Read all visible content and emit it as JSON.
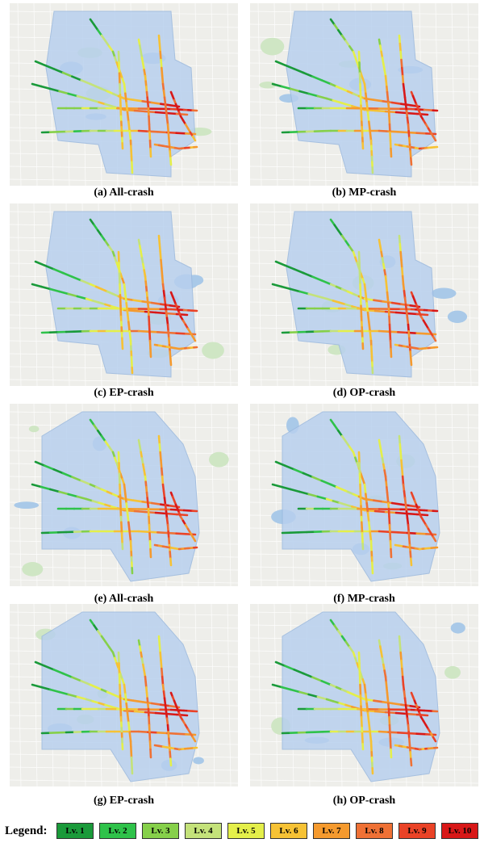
{
  "panels": [
    {
      "caption": "(a) All-crash",
      "zoom": "far"
    },
    {
      "caption": "(b) MP-crash",
      "zoom": "far"
    },
    {
      "caption": "(c) EP-crash",
      "zoom": "far"
    },
    {
      "caption": "(d) OP-crash",
      "zoom": "far"
    },
    {
      "caption": "(e) All-crash",
      "zoom": "near"
    },
    {
      "caption": "(f) MP-crash",
      "zoom": "near"
    },
    {
      "caption": "(g) EP-crash",
      "zoom": "near"
    },
    {
      "caption": "(h) OP-crash",
      "zoom": "near"
    }
  ],
  "legend": {
    "label": "Legend:",
    "items": [
      {
        "label": "Lv. 1",
        "color": "#1a9a3a"
      },
      {
        "label": "Lv. 2",
        "color": "#2fc24a"
      },
      {
        "label": "Lv. 3",
        "color": "#86d04a"
      },
      {
        "label": "Lv. 4",
        "color": "#c4e27a"
      },
      {
        "label": "Lv. 5",
        "color": "#e4ef4a"
      },
      {
        "label": "Lv. 6",
        "color": "#f6c235"
      },
      {
        "label": "Lv. 7",
        "color": "#f59a2e"
      },
      {
        "label": "Lv. 8",
        "color": "#ef7135"
      },
      {
        "label": "Lv. 9",
        "color": "#ea4327"
      },
      {
        "label": "Lv. 10",
        "color": "#d81818"
      }
    ]
  },
  "colors": {
    "map_bg": "#eeeeea",
    "region_fill": "#b8d0ee",
    "road_minor": "#ffffff",
    "water": "#a9c9e8",
    "park": "#cfe6c4"
  }
}
